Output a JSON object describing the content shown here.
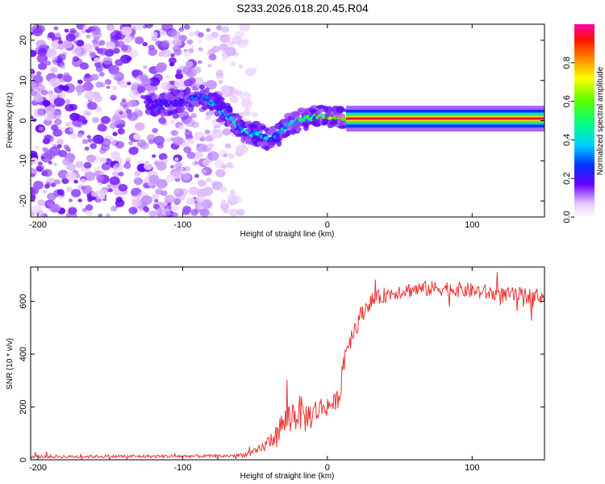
{
  "title": "S233.2026.018.20.45.R04",
  "chart_data": [
    {
      "type": "heatmap",
      "title": "S233.2026.018.20.45.R04",
      "xlabel": "Height of straight line (km)",
      "ylabel": "Frequency (Hz)",
      "xlim": [
        -205,
        150
      ],
      "ylim": [
        -24,
        24
      ],
      "x_ticks": [
        -200,
        -100,
        0,
        100
      ],
      "y_ticks": [
        -20,
        -10,
        0,
        10,
        20
      ],
      "colorbar": {
        "label": "Normalized spectral amplitude",
        "range": [
          0.0,
          1.0
        ],
        "ticks": [
          0.0,
          0.2,
          0.4,
          0.6,
          0.8
        ]
      },
      "carrier_track": {
        "comment": "frequency offset (Hz) vs height (km) along the bright ridge",
        "x": [
          -125,
          -110,
          -95,
          -85,
          -78,
          -70,
          -62,
          -55,
          -48,
          -40,
          -33,
          -28,
          -22,
          -15,
          -8,
          0,
          5,
          12,
          20,
          60,
          100,
          150
        ],
        "y": [
          4.5,
          4.0,
          5.5,
          6.0,
          4.0,
          1.5,
          -1.0,
          -3.0,
          -3.5,
          -5.0,
          -3.0,
          -1.5,
          -0.5,
          0.5,
          1.0,
          1.0,
          0.5,
          0.5,
          0.5,
          0.5,
          0.5,
          0.5
        ],
        "amplitude": [
          0.2,
          0.25,
          0.3,
          0.35,
          0.4,
          0.45,
          0.45,
          0.5,
          0.45,
          0.35,
          0.4,
          0.45,
          0.5,
          0.6,
          0.65,
          0.7,
          0.8,
          0.9,
          0.95,
          0.95,
          0.95,
          0.95
        ]
      },
      "steady_signal_start_km": 13,
      "noise_extent_km": [
        -205,
        -65
      ]
    },
    {
      "type": "line",
      "xlabel": "Height of straight line (km)",
      "ylabel": "SNR (10 * v/v)",
      "xlim": [
        -205,
        150
      ],
      "ylim": [
        0,
        730
      ],
      "x_ticks": [
        -200,
        -100,
        0,
        100
      ],
      "y_ticks": [
        0,
        200,
        400,
        600
      ],
      "color": "#ee3333",
      "series": [
        {
          "name": "SNR",
          "x": [
            -205,
            -180,
            -150,
            -120,
            -90,
            -70,
            -60,
            -50,
            -45,
            -40,
            -35,
            -30,
            -25,
            -20,
            -15,
            -10,
            -5,
            0,
            5,
            8,
            10,
            12,
            15,
            20,
            25,
            30,
            40,
            50,
            60,
            80,
            100,
            120,
            150
          ],
          "y": [
            12,
            12,
            13,
            13,
            14,
            14,
            18,
            28,
            45,
            70,
            105,
            140,
            165,
            185,
            160,
            175,
            195,
            205,
            215,
            240,
            320,
            400,
            450,
            510,
            565,
            600,
            625,
            640,
            645,
            650,
            640,
            625,
            620
          ],
          "noise": [
            6,
            6,
            6,
            6,
            6,
            6,
            8,
            15,
            20,
            30,
            45,
            55,
            70,
            70,
            60,
            55,
            45,
            40,
            35,
            40,
            60,
            55,
            45,
            40,
            35,
            30,
            30,
            30,
            30,
            30,
            30,
            30,
            30
          ]
        }
      ]
    }
  ]
}
